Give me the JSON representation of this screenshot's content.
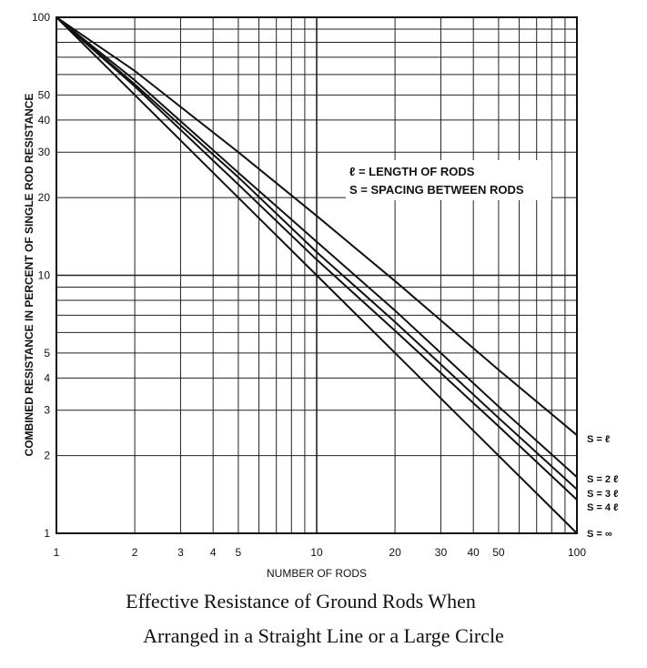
{
  "chart_data": {
    "type": "line",
    "xscale": "log",
    "yscale": "log",
    "xlim": [
      1,
      100
    ],
    "ylim": [
      1,
      100
    ],
    "grid": true,
    "xlabel": "NUMBER OF RODS",
    "ylabel": "COMBINED RESISTANCE IN PERCENT OF SINGLE ROD RESISTANCE",
    "title": "Effective Resistance of Ground Rods When",
    "subtitle": "Arranged in a Straight Line or a Large Circle",
    "xticks": [
      1,
      2,
      3,
      4,
      5,
      10,
      20,
      30,
      40,
      50,
      100
    ],
    "yticks": [
      1,
      2,
      3,
      4,
      5,
      10,
      20,
      30,
      40,
      50,
      100
    ],
    "legend": {
      "lines": [
        "ℓ = LENGTH OF RODS",
        "S = SPACING BETWEEN RODS"
      ],
      "placement": "upper-right"
    },
    "series": [
      {
        "name": "S = ℓ",
        "x": [
          1,
          2,
          5,
          10,
          20,
          50,
          100
        ],
        "y": [
          100,
          62,
          30,
          17,
          9.5,
          4.3,
          2.4
        ]
      },
      {
        "name": "S = 2 ℓ",
        "x": [
          1,
          2,
          5,
          10,
          20,
          50,
          100
        ],
        "y": [
          100,
          57,
          25,
          13.5,
          7.3,
          3.1,
          1.65
        ]
      },
      {
        "name": "S = 3 ℓ",
        "x": [
          1,
          2,
          5,
          10,
          20,
          50,
          100
        ],
        "y": [
          100,
          55,
          24,
          12.3,
          6.6,
          2.8,
          1.48
        ]
      },
      {
        "name": "S = 4 ℓ",
        "x": [
          1,
          2,
          5,
          10,
          20,
          50,
          100
        ],
        "y": [
          100,
          54,
          22.5,
          11.5,
          6.1,
          2.6,
          1.35
        ]
      },
      {
        "name": "S = ∞",
        "x": [
          1,
          2,
          5,
          10,
          20,
          50,
          100
        ],
        "y": [
          100,
          50,
          20,
          10,
          5,
          2,
          1
        ]
      }
    ]
  }
}
